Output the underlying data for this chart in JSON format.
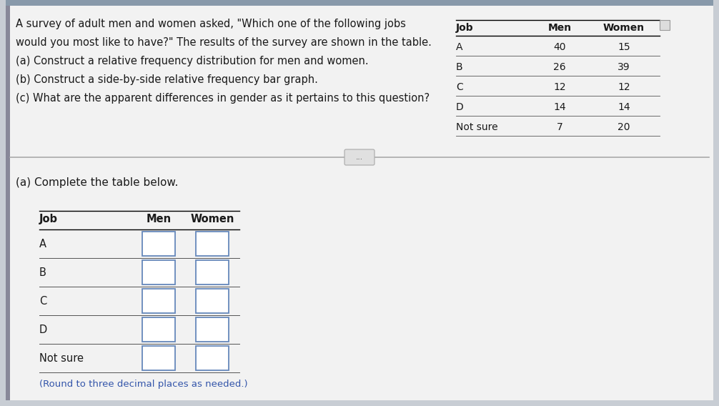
{
  "background_color": "#c8cdd4",
  "panel_color": "#eaebec",
  "top_bg_color": "#b8bfc8",
  "text_color": "#1a1a1a",
  "title_lines": [
    "A survey of adult men and women asked, \"Which one of the following jobs",
    "would you most like to have?\" The results of the survey are shown in the table.",
    "(a) Construct a relative frequency distribution for men and women.",
    "(b) Construct a side-by-side relative frequency bar graph.",
    "(c) What are the apparent differences in gender as it pertains to this question?"
  ],
  "table1": {
    "headers": [
      "Job",
      "Men",
      "Women"
    ],
    "rows": [
      [
        "A",
        "40",
        "15"
      ],
      [
        "B",
        "26",
        "39"
      ],
      [
        "C",
        "12",
        "12"
      ],
      [
        "D",
        "14",
        "14"
      ],
      [
        "Not sure",
        "7",
        "20"
      ]
    ]
  },
  "part_a_label": "(a) Complete the table below.",
  "table2_headers": [
    "Job",
    "Men",
    "Women"
  ],
  "table2_rows": [
    "A",
    "B",
    "C",
    "D",
    "Not sure"
  ],
  "footnote": "(Round to three decimal places as needed.)",
  "input_box_fill": "#ffffff",
  "input_box_border": "#6688bb",
  "left_accent_color": "#888899",
  "divider_color": "#999999",
  "btn_fill": "#e0e0e0",
  "btn_border": "#aaaaaa",
  "btn_text_color": "#555555",
  "footnote_color": "#3355aa"
}
